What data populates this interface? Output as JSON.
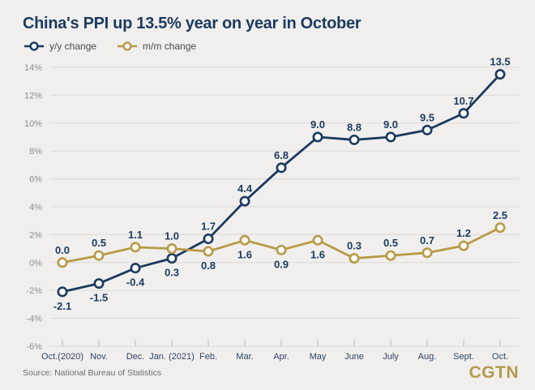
{
  "header": {
    "title": "China's PPI up 13.5% year on year in October"
  },
  "legend": [
    {
      "label": "y/y change",
      "color": "#1b3a5e"
    },
    {
      "label": "m/m change",
      "color": "#b89a45"
    }
  ],
  "chart_data": {
    "type": "line",
    "title": "China's PPI up 13.5% year on year in October",
    "categories": [
      "Oct.(2020)",
      "Nov.",
      "Dec.",
      "Jan. (2021)",
      "Feb.",
      "Mar.",
      "Apr.",
      "May",
      "June",
      "July",
      "Aug.",
      "Sept.",
      "Oct."
    ],
    "series": [
      {
        "name": "y/y change",
        "color": "#1b3a5e",
        "values": [
          -2.1,
          -1.5,
          -0.4,
          0.3,
          1.7,
          4.4,
          6.8,
          9.0,
          8.8,
          9.0,
          9.5,
          10.7,
          13.5
        ],
        "label_side": [
          "below",
          "below",
          "below",
          "below",
          "above",
          "above",
          "above",
          "above",
          "above",
          "above",
          "above",
          "above",
          "above"
        ]
      },
      {
        "name": "m/m change",
        "color": "#b89a45",
        "values": [
          0.0,
          0.5,
          1.1,
          1.0,
          0.8,
          1.6,
          0.9,
          1.6,
          0.3,
          0.5,
          0.7,
          1.2,
          2.5
        ],
        "label_side": [
          "above",
          "above",
          "above",
          "above",
          "below",
          "below",
          "below",
          "below",
          "above",
          "above",
          "above",
          "above",
          "above"
        ]
      }
    ],
    "y_axis": {
      "min": -6,
      "max": 14,
      "step": 2,
      "tick_suffix": "%"
    },
    "grid": true,
    "legend_position": "top-left",
    "marker": "open-circle"
  },
  "colors": {
    "background": "#f0efee",
    "gridline": "#dbdad7",
    "y_tick_label": "#8e8e8c",
    "x_tick_label": "#2e4464",
    "axis_tick": "#b9b8b5",
    "value_label": "#1b3a5e",
    "marker_fill": "#fbfbfa"
  },
  "footer": {
    "source": "Source: National Bureau of Statistics",
    "logo": "CGTN"
  }
}
